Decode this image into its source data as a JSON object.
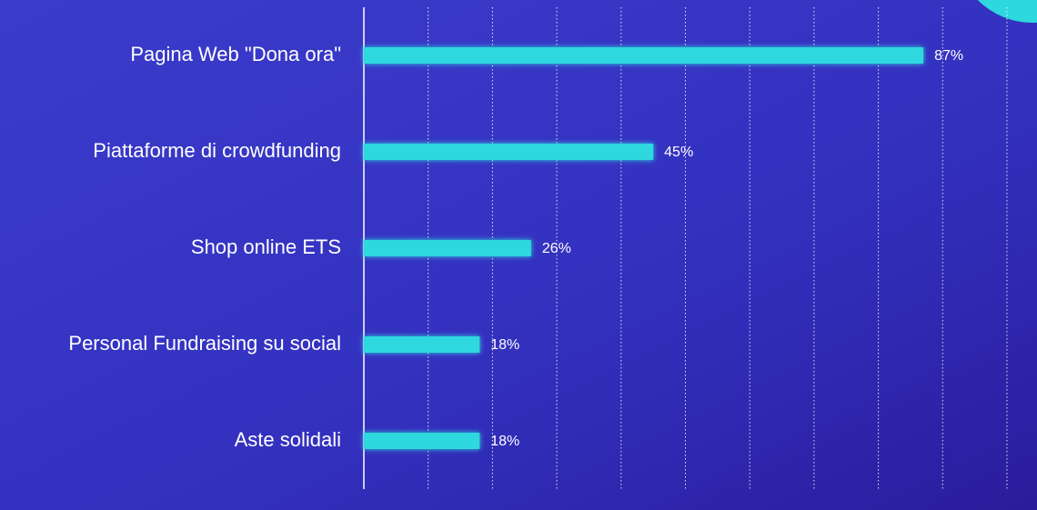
{
  "chart_data": {
    "type": "bar",
    "orientation": "horizontal",
    "categories": [
      "Pagina Web \"Dona ora\"",
      "Piattaforme di crowdfunding",
      "Shop online ETS",
      "Personal Fundraising su social",
      "Aste solidali"
    ],
    "values": [
      87,
      45,
      26,
      18,
      18
    ],
    "value_labels": [
      "87%",
      "45%",
      "26%",
      "18%",
      "18%"
    ],
    "color": "#2dd8de",
    "xlim": [
      0,
      100
    ],
    "xticks": [
      0,
      10,
      20,
      30,
      40,
      50,
      60,
      70,
      80,
      90,
      100
    ],
    "grid": true
  }
}
